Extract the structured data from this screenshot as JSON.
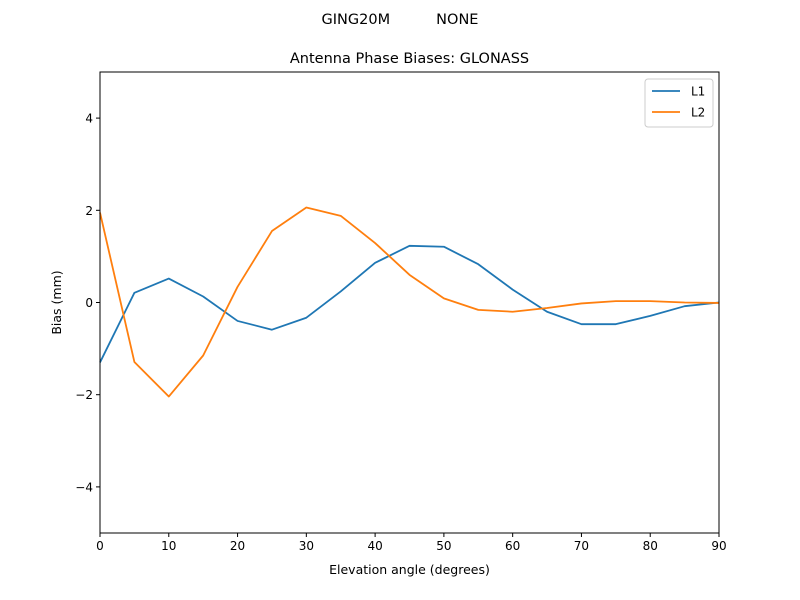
{
  "chart_data": {
    "type": "line",
    "suptitle": "GING20M          NONE",
    "title": "Antenna Phase Biases: GLONASS",
    "xlabel": "Elevation angle (degrees)",
    "ylabel": "Bias (mm)",
    "xlim": [
      0,
      90
    ],
    "ylim": [
      -5,
      5
    ],
    "xticks": [
      0,
      10,
      20,
      30,
      40,
      50,
      60,
      70,
      80,
      90
    ],
    "yticks": [
      -4,
      -2,
      0,
      2,
      4
    ],
    "grid": false,
    "legend": "top-right",
    "x": [
      0,
      5,
      10,
      15,
      20,
      25,
      30,
      35,
      40,
      45,
      50,
      55,
      60,
      65,
      70,
      75,
      80,
      85,
      90
    ],
    "series": [
      {
        "name": "L1",
        "color": "#1f77b4",
        "values": [
          -1.3,
          0.21,
          0.52,
          0.13,
          -0.4,
          -0.59,
          -0.33,
          0.24,
          0.86,
          1.23,
          1.21,
          0.83,
          0.28,
          -0.2,
          -0.47,
          -0.47,
          -0.29,
          -0.08,
          0.0
        ]
      },
      {
        "name": "L2",
        "color": "#ff7f0e",
        "values": [
          1.95,
          -1.29,
          -2.04,
          -1.15,
          0.34,
          1.55,
          2.06,
          1.88,
          1.29,
          0.6,
          0.09,
          -0.16,
          -0.2,
          -0.12,
          -0.02,
          0.03,
          0.03,
          0.0,
          -0.01
        ]
      }
    ]
  }
}
